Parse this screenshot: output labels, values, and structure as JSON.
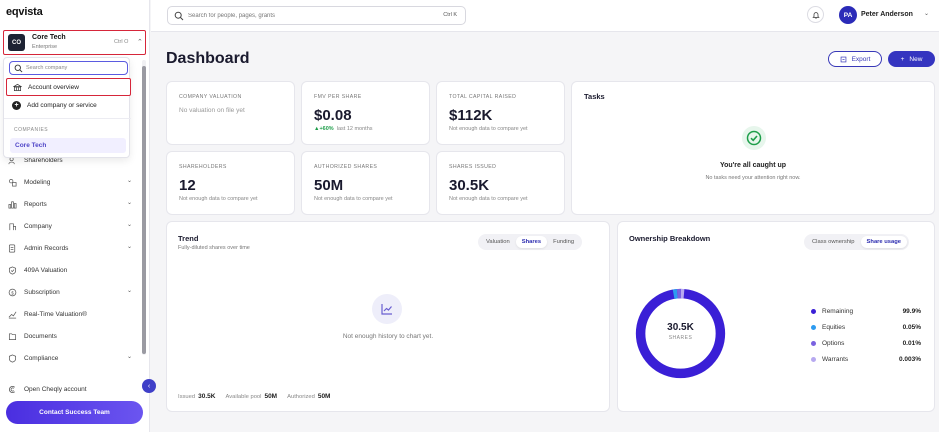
{
  "brand": "eqvista",
  "company": {
    "avatar": "CO",
    "name": "Core Tech",
    "subtitle": "Enterprise",
    "shortcut": "Ctrl O"
  },
  "dropdown": {
    "search_placeholder": "Search company",
    "account_overview": "Account overview",
    "add_company": "Add company or service",
    "category": "COMPANIES",
    "items": [
      "Core Tech"
    ]
  },
  "nav": {
    "items": [
      {
        "label": "Shareholders",
        "icon": "users-icon",
        "chevron": false
      },
      {
        "label": "Modeling",
        "icon": "modeling-icon",
        "chevron": true
      },
      {
        "label": "Reports",
        "icon": "reports-icon",
        "chevron": true
      },
      {
        "label": "Company",
        "icon": "company-icon",
        "chevron": true
      },
      {
        "label": "Admin Records",
        "icon": "admin-records-icon",
        "chevron": true
      },
      {
        "label": "409A Valuation",
        "icon": "shield-check-icon",
        "chevron": false
      },
      {
        "label": "Subscription",
        "icon": "subscription-icon",
        "chevron": true
      },
      {
        "label": "Real-Time Valuation®",
        "icon": "trend-line-icon",
        "chevron": false
      },
      {
        "label": "Documents",
        "icon": "documents-icon",
        "chevron": false
      },
      {
        "label": "Compliance",
        "icon": "compliance-icon",
        "chevron": true
      }
    ],
    "open_cheqly": "Open Cheqly account",
    "contact": "Contact Success Team"
  },
  "topbar": {
    "search_placeholder": "Search for people, pages, grants",
    "search_shortcut": "Ctrl K",
    "user_initials": "PA",
    "user_name": "Peter Anderson"
  },
  "page": {
    "title": "Dashboard",
    "export_label": "Export",
    "new_label": "New"
  },
  "stats": {
    "company_valuation": {
      "label": "COMPANY VALUATION",
      "empty": "No valuation on file yet"
    },
    "fmv": {
      "label": "FMV PER SHARE",
      "value": "$0.08",
      "delta": "▲+60%",
      "note": "last 12 months"
    },
    "capital": {
      "label": "TOTAL CAPITAL RAISED",
      "value": "$112K",
      "note": "Not enough data to compare yet"
    },
    "shareholders": {
      "label": "SHAREHOLDERS",
      "value": "12",
      "note": "Not enough data to compare yet"
    },
    "authorized": {
      "label": "AUTHORIZED SHARES",
      "value": "50M",
      "note": "Not enough data to compare yet"
    },
    "issued": {
      "label": "SHARES ISSUED",
      "value": "30.5K",
      "note": "Not enough data to compare yet"
    }
  },
  "tasks": {
    "title": "Tasks",
    "heading": "You're all caught up",
    "subtitle": "No tasks need your attention right now."
  },
  "trend": {
    "title": "Trend",
    "subtitle": "Fully-diluted shares over time",
    "tabs": [
      "Valuation",
      "Shares",
      "Funding"
    ],
    "active_tab": "Shares",
    "empty": "Not enough history to chart yet.",
    "footer": {
      "issued_label": "Issued",
      "issued_value": "30.5K",
      "pool_label": "Available pool",
      "pool_value": "50M",
      "authorized_label": "Authorized",
      "authorized_value": "50M"
    }
  },
  "ownership": {
    "title": "Ownership Breakdown",
    "tabs": [
      "Class ownership",
      "Share usage"
    ],
    "active_tab": "Share usage",
    "center_value": "30.5K",
    "center_label": "SHARES",
    "legend": [
      {
        "name": "Remaining",
        "value": "99.9%",
        "color": "#3a1fd6"
      },
      {
        "name": "Equities",
        "value": "0.05%",
        "color": "#2d9bf0"
      },
      {
        "name": "Options",
        "value": "0.01%",
        "color": "#7a62e0"
      },
      {
        "name": "Warrants",
        "value": "0.003%",
        "color": "#b7a9f0"
      }
    ]
  },
  "colors": {
    "accent": "#3535c0",
    "highlight_box": "#d6263a",
    "success": "#1e9e4a"
  }
}
